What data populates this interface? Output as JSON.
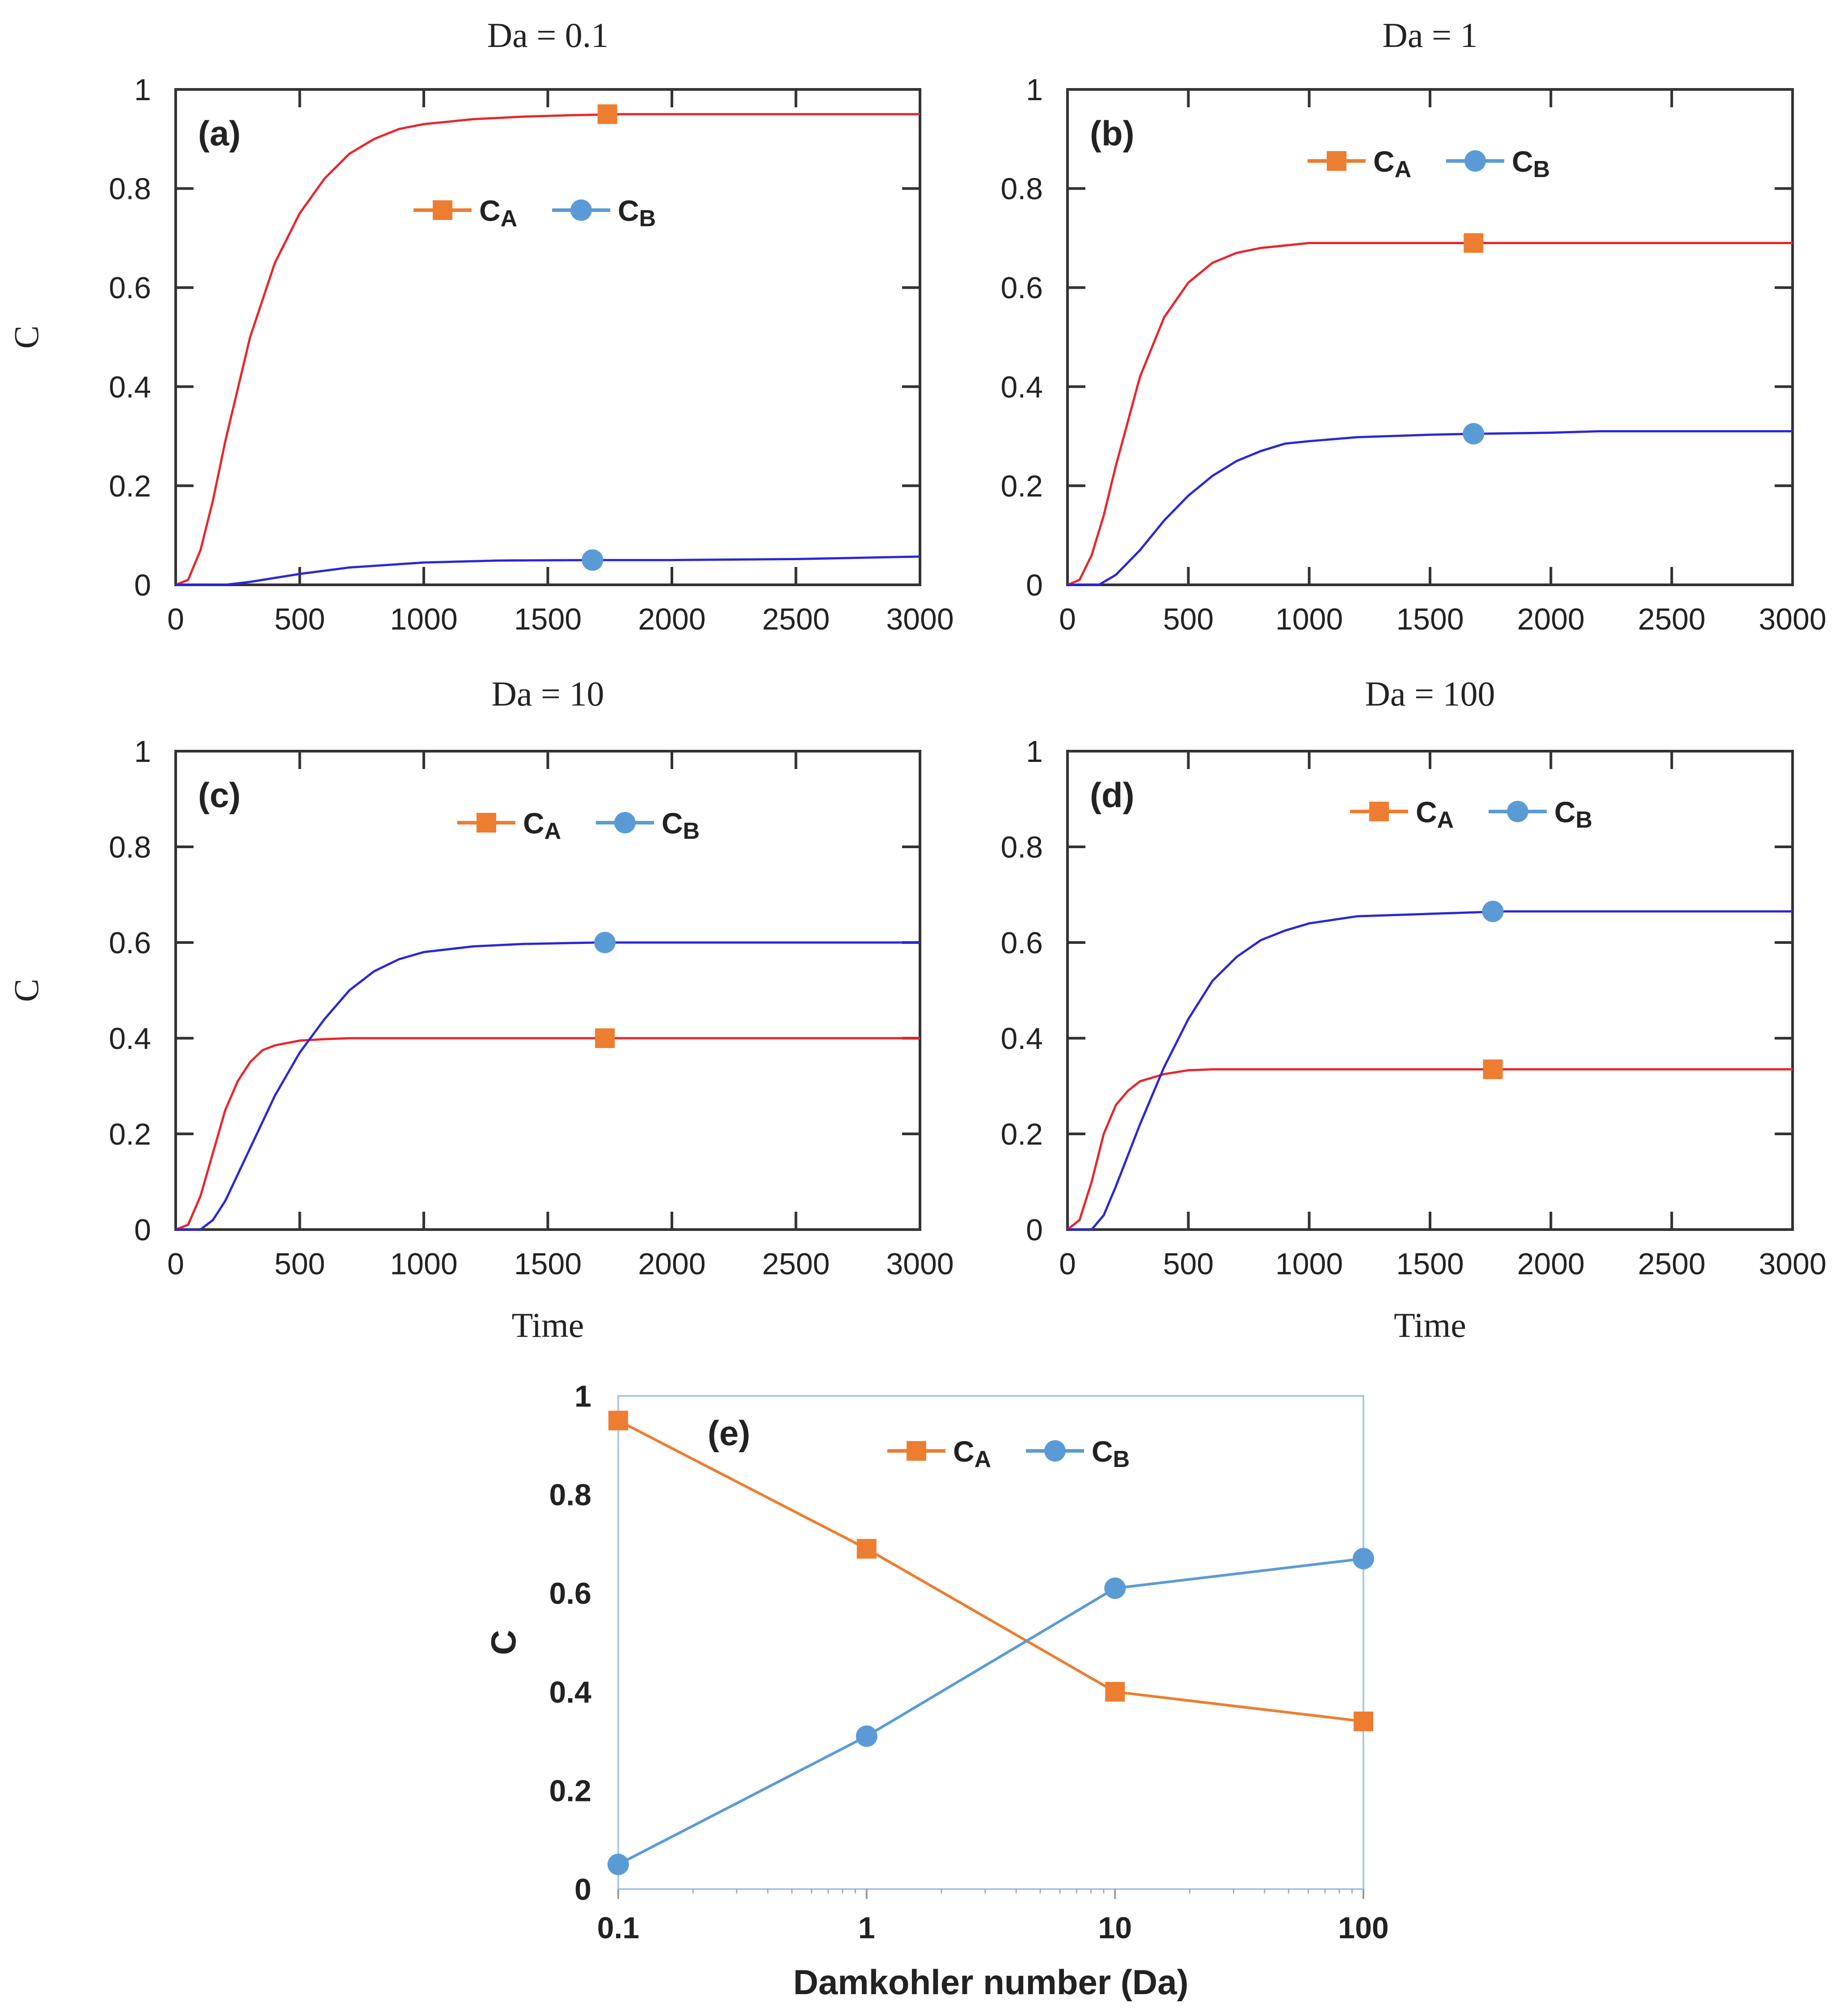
{
  "figure": {
    "legend_labels": {
      "ca_main": "C",
      "ca_sub": "A",
      "cb_main": "C",
      "cb_sub": "B"
    },
    "colors": {
      "ca_line": "#e8262b",
      "cb_line": "#2b27d8",
      "ca_marker": "#ed7d31",
      "cb_marker": "#5b9bd5",
      "frame": "#333333",
      "panel_e_frame": "#a9c8e4",
      "panel_e_ca_line": "#ed7d31",
      "panel_e_cb_line": "#5b9bd5"
    }
  },
  "chart_data": [
    {
      "id": "a",
      "type": "line",
      "panel_label": "(a)",
      "title": "Da = 0.1",
      "xlabel": "",
      "ylabel": "C",
      "xlim": [
        0,
        3000
      ],
      "ylim": [
        0,
        1
      ],
      "x_ticks": [
        0,
        500,
        1000,
        1500,
        2000,
        2500,
        3000
      ],
      "x_tick_labels": [
        "0",
        "500",
        "1000",
        "1500",
        "2000",
        "2500",
        "3000"
      ],
      "y_ticks": [
        0,
        0.2,
        0.4,
        0.6,
        0.8,
        1
      ],
      "y_tick_labels": [
        "0",
        "0.2",
        "0.4",
        "0.6",
        "0.8",
        "1"
      ],
      "legend_position": "upper-center",
      "series": [
        {
          "name": "CA",
          "x": [
            0,
            50,
            100,
            150,
            200,
            300,
            400,
            500,
            600,
            700,
            800,
            900,
            1000,
            1200,
            1400,
            1600,
            1800,
            2000,
            2500,
            3000
          ],
          "values": [
            0,
            0.01,
            0.07,
            0.17,
            0.29,
            0.5,
            0.65,
            0.75,
            0.82,
            0.87,
            0.9,
            0.92,
            0.93,
            0.94,
            0.945,
            0.948,
            0.95,
            0.95,
            0.95,
            0.95
          ],
          "marker_x": 1740,
          "marker_y": 0.95
        },
        {
          "name": "CB",
          "x": [
            0,
            200,
            300,
            400,
            500,
            700,
            1000,
            1300,
            1700,
            2000,
            2500,
            3000
          ],
          "values": [
            0,
            0,
            0.006,
            0.014,
            0.022,
            0.035,
            0.045,
            0.049,
            0.05,
            0.05,
            0.052,
            0.057
          ],
          "marker_x": 1680,
          "marker_y": 0.05
        }
      ]
    },
    {
      "id": "b",
      "type": "line",
      "panel_label": "(b)",
      "title": "Da = 1",
      "xlabel": "",
      "ylabel": "",
      "xlim": [
        0,
        3000
      ],
      "ylim": [
        0,
        1
      ],
      "x_ticks": [
        0,
        500,
        1000,
        1500,
        2000,
        2500,
        3000
      ],
      "x_tick_labels": [
        "0",
        "500",
        "1000",
        "1500",
        "2000",
        "2500",
        "3000"
      ],
      "y_ticks": [
        0,
        0.2,
        0.4,
        0.6,
        0.8,
        1
      ],
      "y_tick_labels": [
        "0",
        "0.2",
        "0.4",
        "0.6",
        "0.8",
        "1"
      ],
      "legend_position": "upper-right",
      "series": [
        {
          "name": "CA",
          "x": [
            0,
            50,
            100,
            150,
            200,
            300,
            400,
            500,
            600,
            700,
            800,
            900,
            1000,
            1200,
            1500,
            2000,
            3000
          ],
          "values": [
            0,
            0.01,
            0.06,
            0.14,
            0.24,
            0.42,
            0.54,
            0.61,
            0.65,
            0.67,
            0.68,
            0.685,
            0.69,
            0.69,
            0.69,
            0.69,
            0.69
          ],
          "marker_x": 1680,
          "marker_y": 0.69
        },
        {
          "name": "CB",
          "x": [
            0,
            130,
            200,
            300,
            400,
            500,
            600,
            700,
            800,
            900,
            1000,
            1200,
            1500,
            1700,
            2000,
            2200,
            3000
          ],
          "values": [
            0,
            0,
            0.02,
            0.07,
            0.13,
            0.18,
            0.22,
            0.25,
            0.27,
            0.285,
            0.29,
            0.298,
            0.303,
            0.305,
            0.307,
            0.31,
            0.31
          ],
          "marker_x": 1680,
          "marker_y": 0.305
        }
      ]
    },
    {
      "id": "c",
      "type": "line",
      "panel_label": "(c)",
      "title": "Da = 10",
      "xlabel": "Time",
      "ylabel": "C",
      "xlim": [
        0,
        3000
      ],
      "ylim": [
        0,
        1
      ],
      "x_ticks": [
        0,
        500,
        1000,
        1500,
        2000,
        2500,
        3000
      ],
      "x_tick_labels": [
        "0",
        "500",
        "1000",
        "1500",
        "2000",
        "2500",
        "3000"
      ],
      "y_ticks": [
        0,
        0.2,
        0.4,
        0.6,
        0.8,
        1
      ],
      "y_tick_labels": [
        "0",
        "0.2",
        "0.4",
        "0.6",
        "0.8",
        "1"
      ],
      "legend_position": "upper-center",
      "series": [
        {
          "name": "CA",
          "x": [
            0,
            50,
            100,
            150,
            200,
            250,
            300,
            350,
            400,
            500,
            600,
            700,
            1000,
            1500,
            3000
          ],
          "values": [
            0,
            0.01,
            0.07,
            0.16,
            0.25,
            0.31,
            0.35,
            0.375,
            0.385,
            0.395,
            0.398,
            0.4,
            0.4,
            0.4,
            0.4
          ],
          "marker_x": 1730,
          "marker_y": 0.4
        },
        {
          "name": "CB",
          "x": [
            0,
            100,
            150,
            200,
            300,
            400,
            500,
            600,
            700,
            800,
            900,
            1000,
            1200,
            1400,
            1700,
            2000,
            3000
          ],
          "values": [
            0,
            0,
            0.02,
            0.06,
            0.17,
            0.28,
            0.37,
            0.44,
            0.5,
            0.54,
            0.565,
            0.58,
            0.592,
            0.597,
            0.6,
            0.6,
            0.6
          ],
          "marker_x": 1730,
          "marker_y": 0.6
        }
      ]
    },
    {
      "id": "d",
      "type": "line",
      "panel_label": "(d)",
      "title": "Da = 100",
      "xlabel": "Time",
      "ylabel": "",
      "xlim": [
        0,
        3000
      ],
      "ylim": [
        0,
        1
      ],
      "x_ticks": [
        0,
        500,
        1000,
        1500,
        2000,
        2500,
        3000
      ],
      "x_tick_labels": [
        "0",
        "500",
        "1000",
        "1500",
        "2000",
        "2500",
        "3000"
      ],
      "y_ticks": [
        0,
        0.2,
        0.4,
        0.6,
        0.8,
        1
      ],
      "y_tick_labels": [
        "0",
        "0.2",
        "0.4",
        "0.6",
        "0.8",
        "1"
      ],
      "legend_position": "upper-right",
      "series": [
        {
          "name": "CA",
          "x": [
            0,
            50,
            100,
            150,
            200,
            250,
            300,
            400,
            500,
            600,
            1000,
            1500,
            3000
          ],
          "values": [
            0,
            0.02,
            0.1,
            0.2,
            0.26,
            0.29,
            0.31,
            0.325,
            0.333,
            0.335,
            0.335,
            0.335,
            0.335
          ],
          "marker_x": 1760,
          "marker_y": 0.335
        },
        {
          "name": "CB",
          "x": [
            0,
            100,
            150,
            200,
            300,
            400,
            500,
            600,
            700,
            800,
            900,
            1000,
            1200,
            1500,
            1800,
            2000,
            3000
          ],
          "values": [
            0,
            0,
            0.03,
            0.09,
            0.22,
            0.34,
            0.44,
            0.52,
            0.57,
            0.605,
            0.625,
            0.64,
            0.655,
            0.66,
            0.665,
            0.665,
            0.665
          ],
          "marker_x": 1760,
          "marker_y": 0.665
        }
      ]
    },
    {
      "id": "e",
      "type": "line",
      "panel_label": "(e)",
      "title": "",
      "xlabel": "Damkohler number (Da)",
      "ylabel": "C",
      "x_scale": "log",
      "xlim": [
        0.1,
        100
      ],
      "ylim": [
        0,
        1
      ],
      "x_ticks": [
        0.1,
        1,
        10,
        100
      ],
      "x_tick_labels": [
        "0.1",
        "1",
        "10",
        "100"
      ],
      "y_ticks": [
        0,
        0.2,
        0.4,
        0.6,
        0.8,
        1
      ],
      "y_tick_labels": [
        "0",
        "0.2",
        "0.4",
        "0.6",
        "0.8",
        "1"
      ],
      "legend_position": "upper-center",
      "series": [
        {
          "name": "CA",
          "x": [
            0.1,
            1,
            10,
            100
          ],
          "values": [
            0.95,
            0.69,
            0.4,
            0.34
          ]
        },
        {
          "name": "CB",
          "x": [
            0.1,
            1,
            10,
            100
          ],
          "values": [
            0.05,
            0.31,
            0.61,
            0.67
          ]
        }
      ]
    }
  ]
}
